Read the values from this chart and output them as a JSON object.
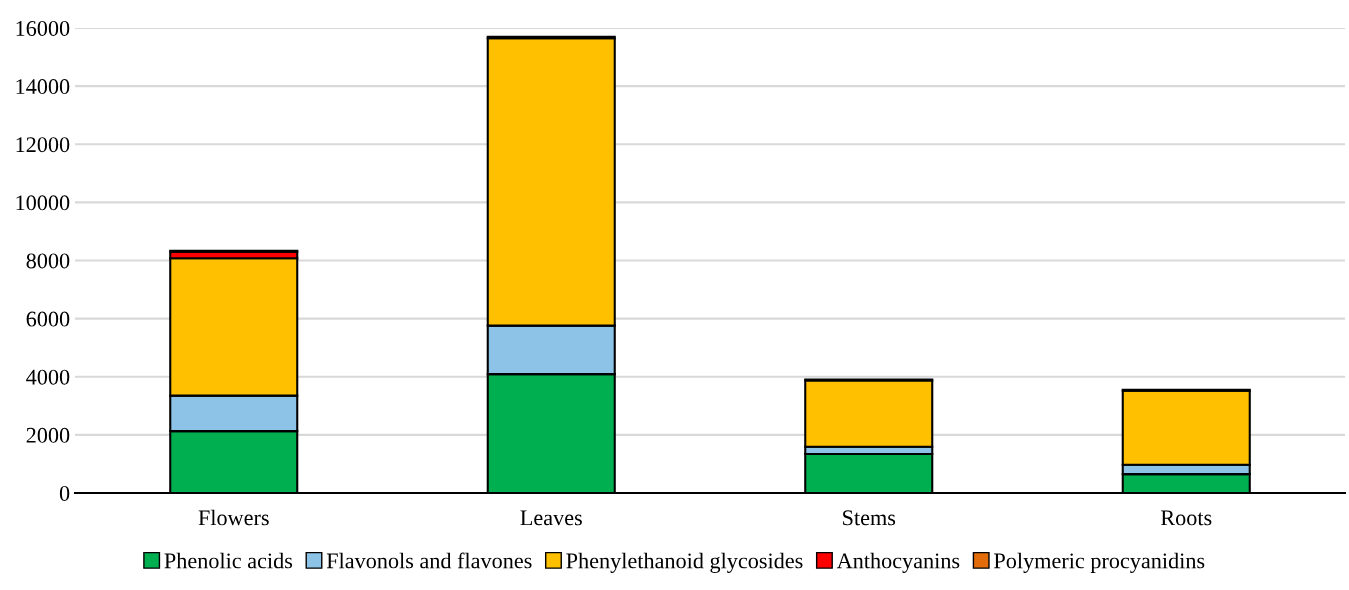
{
  "chart_data": {
    "type": "bar",
    "stacked": true,
    "categories": [
      "Flowers",
      "Leaves",
      "Stems",
      "Roots"
    ],
    "series": [
      {
        "name": "Phenolic acids",
        "color": "#00b050",
        "values": [
          2130,
          4090,
          1340,
          650
        ]
      },
      {
        "name": "Flavonols and flavones",
        "color": "#8dc3e6",
        "values": [
          1220,
          1670,
          250,
          320
        ]
      },
      {
        "name": "Phenylethanoid glycosides",
        "color": "#ffc000",
        "values": [
          4730,
          9890,
          2280,
          2550
        ]
      },
      {
        "name": "Anthocyanins",
        "color": "#ff0000",
        "values": [
          220,
          null,
          null,
          null
        ]
      },
      {
        "name": "Polymeric procyanidins",
        "color": "#e36c0a",
        "values": [
          30,
          50,
          30,
          30
        ]
      }
    ],
    "ylim": [
      0,
      16000
    ],
    "yticks": [
      0,
      2000,
      4000,
      6000,
      8000,
      10000,
      12000,
      14000,
      16000
    ],
    "grid": "y",
    "legend": "bottom"
  }
}
